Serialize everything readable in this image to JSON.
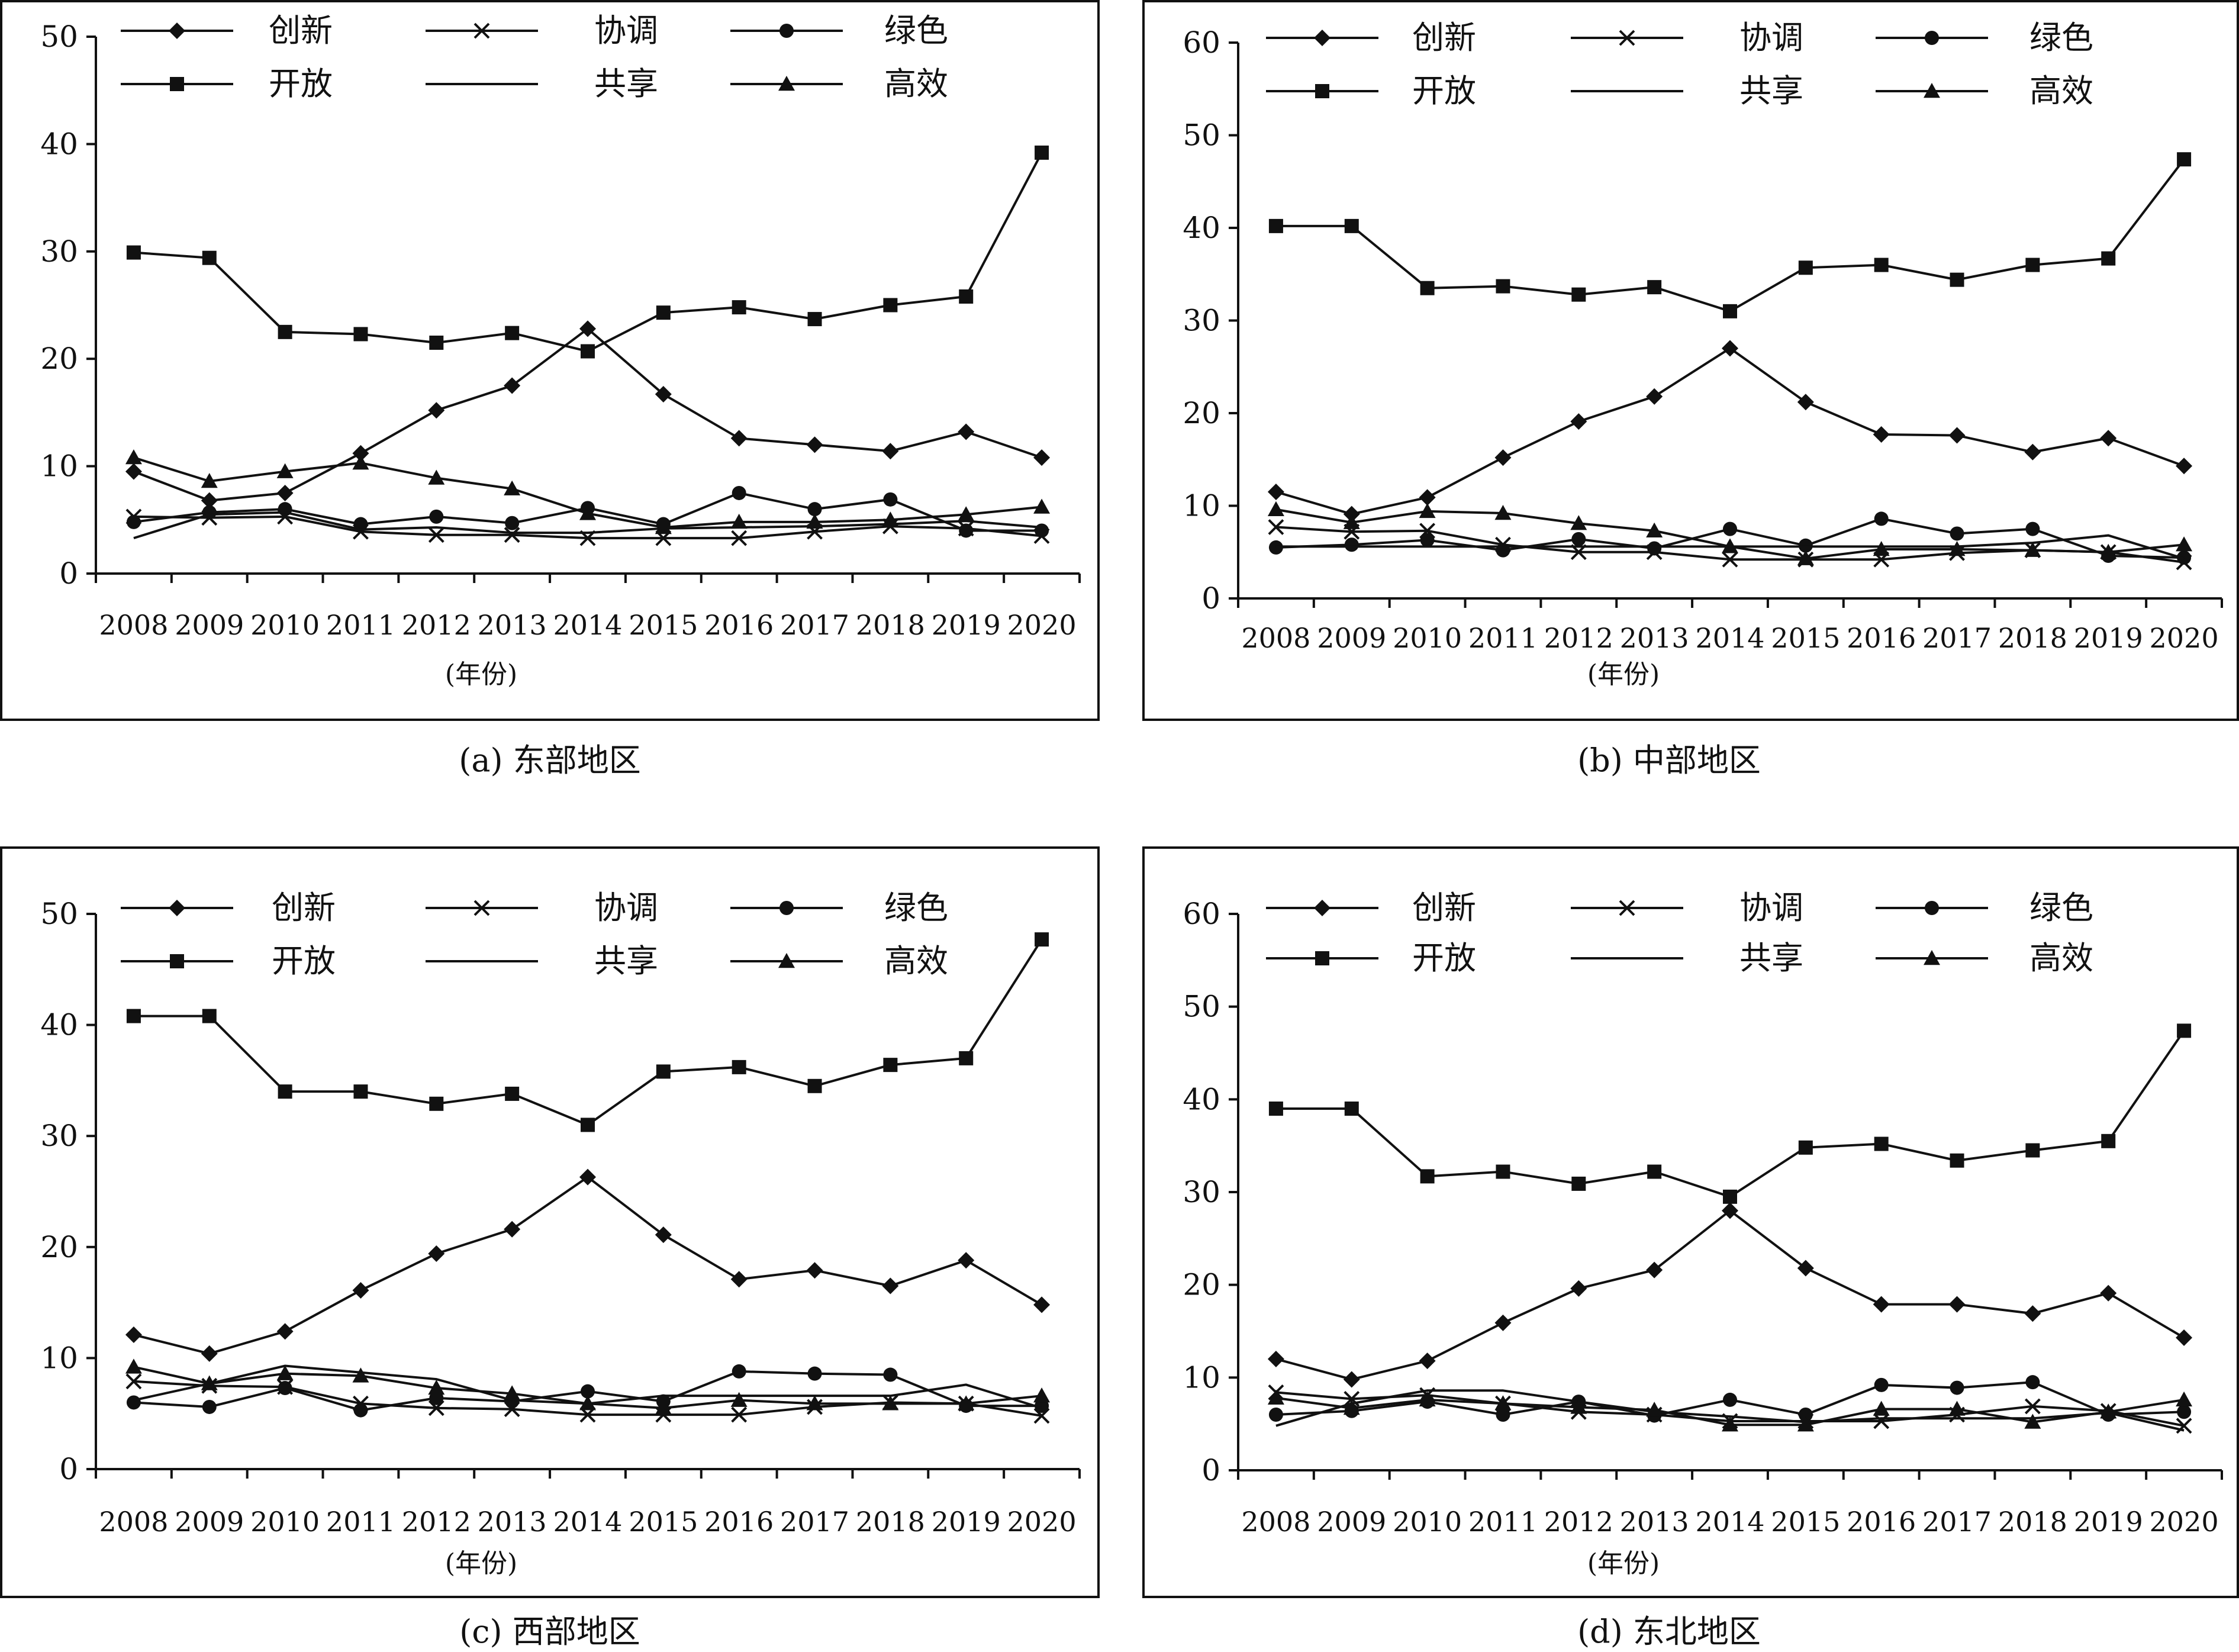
{
  "series_names": [
    "创新",
    "协调",
    "绿色",
    "开放",
    "共享",
    "高效"
  ],
  "x_axis_label": "(年份)",
  "chart_data": [
    {
      "type": "line",
      "caption": "(a) 东部地区",
      "xlabel": "(年份)",
      "ylabel": "",
      "categories": [
        "2008",
        "2009",
        "2010",
        "2011",
        "2012",
        "2013",
        "2014",
        "2015",
        "2016",
        "2017",
        "2018",
        "2019",
        "2020"
      ],
      "ylim": [
        0,
        50
      ],
      "yticks": [
        0,
        10,
        20,
        30,
        40,
        50
      ],
      "series": [
        {
          "name": "创新",
          "marker": "diamond",
          "values": [
            9.5,
            6.8,
            7.5,
            11.2,
            15.2,
            17.5,
            22.8,
            16.7,
            12.6,
            12.0,
            11.4,
            13.2,
            10.8
          ]
        },
        {
          "name": "协调",
          "marker": "x",
          "values": [
            5.3,
            5.2,
            5.3,
            3.9,
            3.6,
            3.6,
            3.3,
            3.3,
            3.3,
            3.9,
            4.4,
            4.2,
            3.5
          ]
        },
        {
          "name": "绿色",
          "marker": "circle",
          "values": [
            4.8,
            5.7,
            6.0,
            4.6,
            5.3,
            4.7,
            6.1,
            4.6,
            7.5,
            6.0,
            6.9,
            4.0,
            4.0
          ]
        },
        {
          "name": "开放",
          "marker": "square",
          "values": [
            29.9,
            29.4,
            22.5,
            22.3,
            21.5,
            22.4,
            20.7,
            24.3,
            24.8,
            23.7,
            25.0,
            25.8,
            39.2
          ]
        },
        {
          "name": "共享",
          "marker": "none",
          "values": [
            3.3,
            5.5,
            5.7,
            4.1,
            4.3,
            3.8,
            3.8,
            4.2,
            4.3,
            4.4,
            4.6,
            4.9,
            4.3
          ]
        },
        {
          "name": "高效",
          "marker": "triangle",
          "values": [
            10.8,
            8.6,
            9.5,
            10.3,
            8.9,
            7.9,
            5.6,
            4.3,
            4.8,
            4.8,
            5.0,
            5.5,
            6.2
          ]
        }
      ]
    },
    {
      "type": "line",
      "caption": "(b) 中部地区",
      "xlabel": "(年份)",
      "ylabel": "",
      "categories": [
        "2008",
        "2009",
        "2010",
        "2011",
        "2012",
        "2013",
        "2014",
        "2015",
        "2016",
        "2017",
        "2018",
        "2019",
        "2020"
      ],
      "ylim": [
        0,
        60
      ],
      "yticks": [
        0,
        10,
        20,
        30,
        40,
        50,
        60
      ],
      "series": [
        {
          "name": "创新",
          "marker": "diamond",
          "values": [
            11.5,
            9.1,
            10.9,
            15.2,
            19.1,
            21.8,
            27.0,
            21.2,
            17.7,
            17.6,
            15.8,
            17.3,
            14.3
          ]
        },
        {
          "name": "协调",
          "marker": "x",
          "values": [
            7.7,
            7.2,
            7.3,
            5.8,
            5.0,
            5.0,
            4.2,
            4.2,
            4.2,
            4.9,
            5.2,
            5.0,
            3.9
          ]
        },
        {
          "name": "绿色",
          "marker": "circle",
          "values": [
            5.5,
            5.8,
            6.3,
            5.2,
            6.4,
            5.4,
            7.5,
            5.7,
            8.6,
            7.0,
            7.5,
            4.6,
            4.4
          ]
        },
        {
          "name": "开放",
          "marker": "square",
          "values": [
            40.2,
            40.2,
            33.5,
            33.7,
            32.8,
            33.6,
            31.0,
            35.7,
            36.0,
            34.4,
            36.0,
            36.7,
            47.4
          ]
        },
        {
          "name": "共享",
          "marker": "none",
          "values": [
            5.6,
            5.6,
            5.6,
            5.6,
            5.6,
            5.6,
            5.6,
            5.6,
            5.6,
            5.6,
            6.0,
            6.8,
            4.3
          ]
        },
        {
          "name": "高效",
          "marker": "triangle",
          "values": [
            9.6,
            8.2,
            9.4,
            9.2,
            8.1,
            7.3,
            5.6,
            4.3,
            5.3,
            5.3,
            5.2,
            5.0,
            5.8
          ]
        }
      ]
    },
    {
      "type": "line",
      "caption": "(c) 西部地区",
      "xlabel": "(年份)",
      "ylabel": "",
      "categories": [
        "2008",
        "2009",
        "2010",
        "2011",
        "2012",
        "2013",
        "2014",
        "2015",
        "2016",
        "2017",
        "2018",
        "2019",
        "2020"
      ],
      "ylim": [
        0,
        50
      ],
      "yticks": [
        0,
        10,
        20,
        30,
        40,
        50
      ],
      "series": [
        {
          "name": "创新",
          "marker": "diamond",
          "values": [
            12.1,
            10.4,
            12.4,
            16.1,
            19.4,
            21.6,
            26.3,
            21.1,
            17.1,
            17.9,
            16.5,
            18.8,
            14.8
          ]
        },
        {
          "name": "协调",
          "marker": "x",
          "values": [
            7.9,
            7.5,
            7.4,
            5.9,
            5.5,
            5.4,
            4.9,
            4.9,
            4.9,
            5.6,
            6.0,
            5.9,
            4.8
          ]
        },
        {
          "name": "绿色",
          "marker": "circle",
          "values": [
            6.0,
            5.6,
            7.3,
            5.3,
            6.4,
            6.1,
            7.0,
            6.1,
            8.8,
            8.6,
            8.5,
            5.7,
            5.7
          ]
        },
        {
          "name": "开放",
          "marker": "square",
          "values": [
            40.8,
            40.8,
            34.0,
            34.0,
            32.9,
            33.8,
            31.0,
            35.8,
            36.2,
            34.5,
            36.4,
            37.0,
            47.7
          ]
        },
        {
          "name": "共享",
          "marker": "none",
          "values": [
            6.2,
            7.7,
            9.3,
            8.7,
            8.1,
            6.2,
            5.9,
            6.6,
            6.6,
            6.6,
            6.6,
            7.6,
            5.5
          ]
        },
        {
          "name": "高效",
          "marker": "triangle",
          "values": [
            9.2,
            7.7,
            8.6,
            8.4,
            7.3,
            6.8,
            5.9,
            5.5,
            6.2,
            5.9,
            5.9,
            5.9,
            6.6
          ]
        }
      ]
    },
    {
      "type": "line",
      "caption": "(d) 东北地区",
      "xlabel": "(年份)",
      "ylabel": "",
      "categories": [
        "2008",
        "2009",
        "2010",
        "2011",
        "2012",
        "2013",
        "2014",
        "2015",
        "2016",
        "2017",
        "2018",
        "2019",
        "2020"
      ],
      "ylim": [
        0,
        60
      ],
      "yticks": [
        0,
        10,
        20,
        30,
        40,
        50,
        60
      ],
      "series": [
        {
          "name": "创新",
          "marker": "diamond",
          "values": [
            12.0,
            9.8,
            11.8,
            15.9,
            19.6,
            21.6,
            28.0,
            21.8,
            17.9,
            17.9,
            16.9,
            19.1,
            14.3
          ]
        },
        {
          "name": "协调",
          "marker": "x",
          "values": [
            8.4,
            7.7,
            8.1,
            7.2,
            6.3,
            6.0,
            5.3,
            5.3,
            5.3,
            6.0,
            6.9,
            6.4,
            4.8
          ]
        },
        {
          "name": "绿色",
          "marker": "circle",
          "values": [
            6.0,
            6.4,
            7.4,
            6.0,
            7.4,
            5.9,
            7.6,
            6.0,
            9.2,
            8.9,
            9.5,
            6.0,
            6.3
          ]
        },
        {
          "name": "开放",
          "marker": "square",
          "values": [
            39.0,
            39.0,
            31.7,
            32.2,
            30.9,
            32.2,
            29.5,
            34.8,
            35.2,
            33.4,
            34.5,
            35.5,
            47.4
          ]
        },
        {
          "name": "共享",
          "marker": "none",
          "values": [
            4.8,
            7.2,
            8.6,
            8.6,
            7.4,
            6.3,
            5.8,
            5.2,
            5.6,
            5.6,
            5.6,
            6.2,
            4.3
          ]
        },
        {
          "name": "高效",
          "marker": "triangle",
          "values": [
            7.8,
            6.7,
            7.6,
            7.2,
            6.8,
            6.5,
            4.9,
            4.9,
            6.6,
            6.6,
            5.2,
            6.3,
            7.6
          ]
        }
      ]
    }
  ]
}
